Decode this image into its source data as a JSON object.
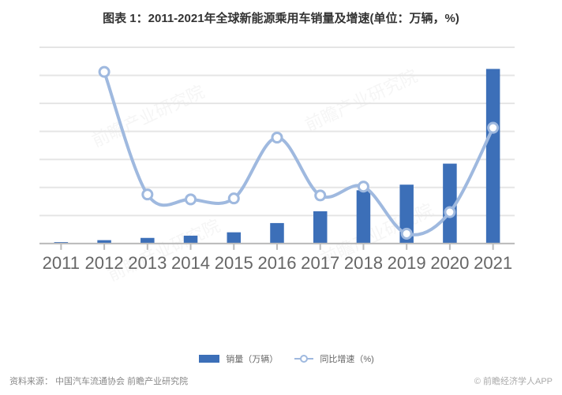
{
  "title": "图表 1：2011-2021年全球新能源乘用车销量及增速(单位：万辆，%)",
  "source_label": "资料来源：",
  "source_text": "中国汽车流通协会 前瞻产业研究院",
  "copyright": "© 前瞻经济学人APP",
  "watermark_text": "前瞻产业研究院",
  "chart": {
    "type": "bar+line",
    "categories": [
      "2011",
      "2012",
      "2013",
      "2014",
      "2015",
      "2016",
      "2017",
      "2018",
      "2019",
      "2020",
      "2021"
    ],
    "bar_series": {
      "name": "销量（万辆）",
      "values": [
        5,
        12,
        20,
        28,
        40,
        73,
        115,
        190,
        210,
        285,
        623
      ],
      "color": "#3c6fb8",
      "bar_width_ratio": 0.32
    },
    "line_series": {
      "name": "同比增速（%)",
      "values": [
        null,
        175,
        50,
        45,
        46,
        108,
        49,
        58,
        10,
        32,
        118
      ],
      "color": "#9fb9df",
      "line_width": 2,
      "marker_size": 3
    },
    "y_left": {
      "min": 0,
      "max": 700,
      "step": 100,
      "fmt": "int"
    },
    "y_right": {
      "min": 0,
      "max": 200,
      "step": 20,
      "fmt": "pct"
    },
    "grid_color": "#e5e5e5",
    "axis_text_color": "#888888",
    "cat_text_color": "#666666",
    "background": "#ffffff",
    "title_fontsize": 15,
    "axis_fontsize": 11,
    "legend_fontsize": 11
  },
  "legend": {
    "bar_label": "销量（万辆）",
    "line_label": "同比增速（%)"
  }
}
